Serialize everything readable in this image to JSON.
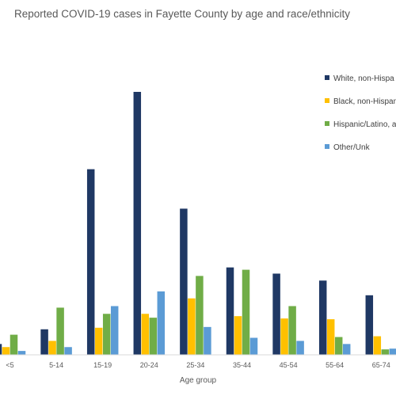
{
  "chart_data": {
    "type": "bar",
    "title": "Reported COVID-19 cases in Fayette County by age and race/ethnicity",
    "xlabel": "Age group",
    "ylabel": "",
    "ylim": [
      0,
      340
    ],
    "grid": false,
    "legend_position": "right",
    "categories": [
      "<5",
      "5-14",
      "15-19",
      "20-24",
      "25-34",
      "35-44",
      "45-54",
      "55-64",
      "65-74"
    ],
    "series": [
      {
        "name": "White, non-Hispanic",
        "color": "#1f3864",
        "values": [
          14,
          33,
          240,
          340,
          189,
          113,
          105,
          96,
          77
        ]
      },
      {
        "name": "Black, non-Hispanic",
        "color": "#ffc000",
        "values": [
          10,
          18,
          35,
          53,
          73,
          50,
          47,
          46,
          24
        ]
      },
      {
        "name": "Hispanic/Latino, any race",
        "color": "#70ad47",
        "values": [
          26,
          61,
          53,
          48,
          102,
          110,
          63,
          23,
          7
        ]
      },
      {
        "name": "Other/Unk",
        "color": "#5b9bd5",
        "values": [
          5,
          10,
          63,
          82,
          36,
          22,
          18,
          14,
          8
        ]
      }
    ],
    "legend_labels": [
      "White, non-Hispa",
      "Black, non-Hispan",
      "Hispanic/Latino, a",
      "Other/Unk"
    ]
  }
}
